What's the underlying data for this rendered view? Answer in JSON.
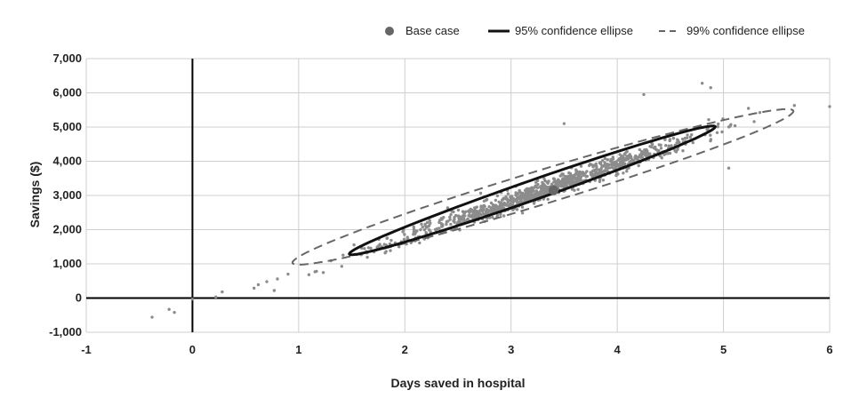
{
  "chart_data": {
    "type": "scatter",
    "xlabel": "Days saved in hospital",
    "ylabel": "Savings ($)",
    "xlim": [
      -1,
      6
    ],
    "ylim": [
      -1000,
      7000
    ],
    "x_ticks": [
      -1,
      0,
      1,
      2,
      3,
      4,
      5,
      6
    ],
    "x_tick_labels": [
      "-1",
      "0",
      "1",
      "2",
      "3",
      "4",
      "5",
      "6"
    ],
    "y_ticks": [
      -1000,
      0,
      1000,
      2000,
      3000,
      4000,
      5000,
      6000,
      7000
    ],
    "y_tick_labels": [
      "-1,000",
      "0",
      "1,000",
      "2,000",
      "3,000",
      "4,000",
      "5,000",
      "6,000",
      "7,000"
    ],
    "grid": true,
    "legend_position": "top-right",
    "legend": [
      "Base case",
      "95% confidence ellipse",
      "99% confidence ellipse"
    ],
    "colors": {
      "points": "#8c8c8c",
      "base_case": "#666666",
      "ellipse95": "#111111",
      "ellipse99": "#666666",
      "grid": "#cfcfcf",
      "axis": "#000000"
    },
    "base_case": {
      "x": 3.4,
      "y": 3150
    },
    "ellipse95": {
      "center_x": 3.2,
      "center_y": 3150,
      "semi_major_days": 1.72,
      "semi_major_dollars": 1872,
      "semi_minor_days": 0.1,
      "semi_minor_dollars": -195
    },
    "ellipse99": {
      "center_x": 3.3,
      "center_y": 3250,
      "semi_major_days": 2.35,
      "semi_major_dollars": 2250,
      "semi_minor_days": 0.2,
      "semi_minor_dollars": -326
    },
    "scatter_summary": {
      "n_points": 1000,
      "mean_x": 3.3,
      "mean_y": 3150
    },
    "outliers": [
      {
        "x": -0.38,
        "y": -560
      },
      {
        "x": -0.22,
        "y": -330
      },
      {
        "x": -0.17,
        "y": -420
      },
      {
        "x": 0.0,
        "y": -30
      },
      {
        "x": 0.22,
        "y": 30
      },
      {
        "x": 0.28,
        "y": 180
      },
      {
        "x": 0.58,
        "y": 290
      },
      {
        "x": 0.62,
        "y": 390
      },
      {
        "x": 0.7,
        "y": 480
      },
      {
        "x": 0.8,
        "y": 560
      },
      {
        "x": 0.9,
        "y": 700
      },
      {
        "x": 3.5,
        "y": 5100
      },
      {
        "x": 4.25,
        "y": 5950
      },
      {
        "x": 4.8,
        "y": 6280
      },
      {
        "x": 4.88,
        "y": 6150
      },
      {
        "x": 6.0,
        "y": 5600
      },
      {
        "x": 5.05,
        "y": 3800
      }
    ]
  }
}
